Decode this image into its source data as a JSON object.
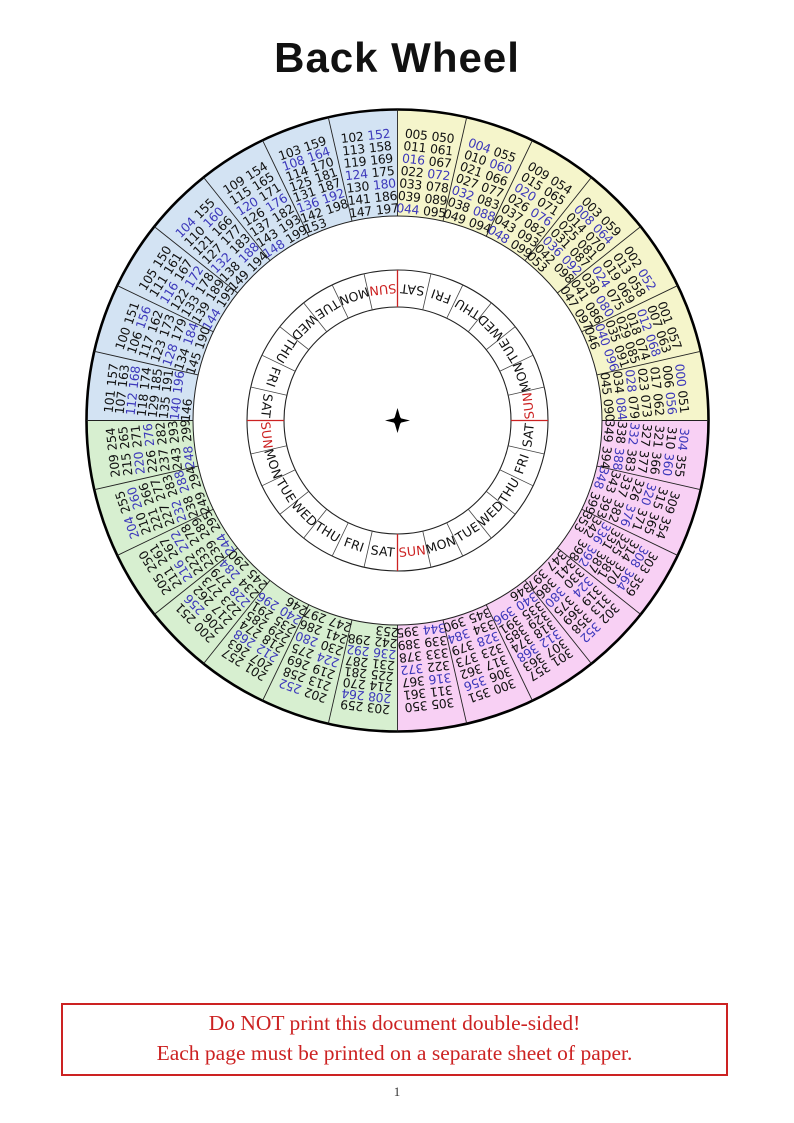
{
  "page": {
    "title": "Back Wheel",
    "page_number": "1"
  },
  "warning_box": {
    "line1": "Do NOT print this document double-sided!",
    "line2": "Each page must be printed on a separate sheet of paper."
  },
  "colors": {
    "century_000_fill": "#f5f5cb",
    "century_100_fill": "#d3e3f3",
    "century_200_fill": "#d7efd0",
    "century_300_fill": "#f8d0f4",
    "leap_year_text": "#3c38bb",
    "year_text": "#111111",
    "sunday_text": "#cc2222",
    "axis_mark": "#cc2222",
    "line": "#222222",
    "warning_red": "#cc2222"
  },
  "wheel": {
    "day_ring": {
      "days_clockwise_from_top": [
        "SAT",
        "FRI",
        "THU",
        "WED",
        "TUE",
        "MON",
        "SUN",
        "SAT",
        "FRI",
        "THU",
        "WED",
        "TUE",
        "MON",
        "SUN",
        "SAT",
        "FRI",
        "THU",
        "WED",
        "TUE",
        "MON",
        "SUN",
        "SAT",
        "FRI",
        "THU",
        "WED",
        "TUE",
        "MON",
        "SUN"
      ]
    },
    "black_centuries": [
      "100",
      "200",
      "300"
    ],
    "sectors_clockwise_from_top": [
      {
        "century": "000-099",
        "fill": "century_000_fill",
        "years": [
          "005",
          "011",
          "016",
          "022",
          "033",
          "039",
          "044",
          "050",
          "061",
          "067",
          "072",
          "078",
          "089",
          "095"
        ]
      },
      {
        "century": "000-099",
        "fill": "century_000_fill",
        "years": [
          "004",
          "010",
          "021",
          "027",
          "032",
          "038",
          "049",
          "055",
          "060",
          "066",
          "077",
          "083",
          "088",
          "094"
        ]
      },
      {
        "century": "000-099",
        "fill": "century_000_fill",
        "years": [
          "009",
          "015",
          "020",
          "026",
          "037",
          "043",
          "048",
          "054",
          "065",
          "071",
          "076",
          "082",
          "093",
          "099"
        ]
      },
      {
        "century": "000-099",
        "fill": "century_000_fill",
        "years": [
          "003",
          "008",
          "014",
          "025",
          "031",
          "036",
          "042",
          "053",
          "059",
          "064",
          "070",
          "081",
          "087",
          "092",
          "098"
        ]
      },
      {
        "century": "000-099",
        "fill": "century_000_fill",
        "years": [
          "002",
          "013",
          "019",
          "024",
          "030",
          "041",
          "047",
          "052",
          "058",
          "069",
          "075",
          "080",
          "086",
          "097"
        ]
      },
      {
        "century": "000-099",
        "fill": "century_000_fill",
        "years": [
          "001",
          "007",
          "012",
          "018",
          "029",
          "035",
          "040",
          "046",
          "057",
          "063",
          "068",
          "074",
          "085",
          "091",
          "096"
        ]
      },
      {
        "century": "000-099",
        "fill": "century_000_fill",
        "years": [
          "000",
          "006",
          "017",
          "023",
          "028",
          "034",
          "045",
          "051",
          "056",
          "062",
          "073",
          "079",
          "084",
          "090"
        ]
      },
      {
        "century": "300-399",
        "fill": "century_300_fill",
        "years": [
          "304",
          "310",
          "321",
          "327",
          "332",
          "338",
          "349",
          "355",
          "360",
          "366",
          "377",
          "383",
          "388",
          "394"
        ]
      },
      {
        "century": "300-399",
        "fill": "century_300_fill",
        "years": [
          "309",
          "315",
          "320",
          "326",
          "337",
          "343",
          "348",
          "354",
          "365",
          "371",
          "376",
          "382",
          "393",
          "399"
        ]
      },
      {
        "century": "300-399",
        "fill": "century_300_fill",
        "years": [
          "303",
          "308",
          "314",
          "325",
          "331",
          "336",
          "342",
          "353",
          "359",
          "364",
          "370",
          "381",
          "387",
          "392",
          "398"
        ]
      },
      {
        "century": "300-399",
        "fill": "century_300_fill",
        "years": [
          "302",
          "313",
          "319",
          "324",
          "330",
          "341",
          "347",
          "352",
          "358",
          "369",
          "375",
          "380",
          "386",
          "397"
        ]
      },
      {
        "century": "300-399",
        "fill": "century_300_fill",
        "years": [
          "301",
          "307",
          "312",
          "318",
          "329",
          "335",
          "340",
          "346",
          "357",
          "363",
          "368",
          "374",
          "385",
          "391",
          "396"
        ]
      },
      {
        "century": "300-399",
        "fill": "century_300_fill",
        "years": [
          "300",
          "306",
          "317",
          "323",
          "328",
          "334",
          "345",
          "351",
          "356",
          "362",
          "373",
          "379",
          "384",
          "390"
        ]
      },
      {
        "century": "300-399",
        "fill": "century_300_fill",
        "years": [
          "305",
          "311",
          "316",
          "322",
          "333",
          "339",
          "344",
          "350",
          "361",
          "367",
          "372",
          "378",
          "389",
          "395"
        ]
      },
      {
        "century": "200-299",
        "fill": "century_200_fill",
        "years": [
          "203",
          "208",
          "214",
          "225",
          "231",
          "236",
          "242",
          "253",
          "259",
          "264",
          "270",
          "281",
          "287",
          "292",
          "298"
        ]
      },
      {
        "century": "200-299",
        "fill": "century_200_fill",
        "years": [
          "202",
          "213",
          "219",
          "224",
          "230",
          "241",
          "247",
          "252",
          "258",
          "269",
          "275",
          "280",
          "286",
          "297"
        ]
      },
      {
        "century": "200-299",
        "fill": "century_200_fill",
        "years": [
          "201",
          "207",
          "212",
          "218",
          "229",
          "235",
          "240",
          "246",
          "257",
          "263",
          "268",
          "274",
          "285",
          "291",
          "296"
        ]
      },
      {
        "century": "200-299",
        "fill": "century_200_fill",
        "years": [
          "200",
          "206",
          "217",
          "223",
          "228",
          "234",
          "245",
          "251",
          "256",
          "262",
          "273",
          "279",
          "284",
          "290"
        ]
      },
      {
        "century": "200-299",
        "fill": "century_200_fill",
        "years": [
          "205",
          "211",
          "216",
          "222",
          "233",
          "239",
          "244",
          "250",
          "261",
          "267",
          "272",
          "278",
          "289",
          "295"
        ]
      },
      {
        "century": "200-299",
        "fill": "century_200_fill",
        "years": [
          "204",
          "210",
          "221",
          "227",
          "232",
          "238",
          "249",
          "255",
          "260",
          "266",
          "277",
          "283",
          "288",
          "294"
        ]
      },
      {
        "century": "200-299",
        "fill": "century_200_fill",
        "years": [
          "209",
          "215",
          "220",
          "226",
          "237",
          "243",
          "248",
          "254",
          "265",
          "271",
          "276",
          "282",
          "293",
          "299"
        ]
      },
      {
        "century": "100-199",
        "fill": "century_100_fill",
        "years": [
          "101",
          "107",
          "112",
          "118",
          "129",
          "135",
          "140",
          "146",
          "157",
          "163",
          "168",
          "174",
          "185",
          "191",
          "196"
        ]
      },
      {
        "century": "100-199",
        "fill": "century_100_fill",
        "years": [
          "100",
          "106",
          "117",
          "123",
          "128",
          "134",
          "145",
          "151",
          "156",
          "162",
          "173",
          "179",
          "184",
          "190"
        ]
      },
      {
        "century": "100-199",
        "fill": "century_100_fill",
        "years": [
          "105",
          "111",
          "116",
          "122",
          "133",
          "139",
          "144",
          "150",
          "161",
          "167",
          "172",
          "178",
          "189",
          "195"
        ]
      },
      {
        "century": "100-199",
        "fill": "century_100_fill",
        "years": [
          "104",
          "110",
          "121",
          "127",
          "132",
          "138",
          "149",
          "155",
          "160",
          "166",
          "177",
          "183",
          "188",
          "194"
        ]
      },
      {
        "century": "100-199",
        "fill": "century_100_fill",
        "years": [
          "109",
          "115",
          "120",
          "126",
          "137",
          "143",
          "148",
          "154",
          "165",
          "171",
          "176",
          "182",
          "193",
          "199"
        ]
      },
      {
        "century": "100-199",
        "fill": "century_100_fill",
        "years": [
          "103",
          "108",
          "114",
          "125",
          "131",
          "136",
          "142",
          "153",
          "159",
          "164",
          "170",
          "181",
          "187",
          "192",
          "198"
        ]
      },
      {
        "century": "100-199",
        "fill": "century_100_fill",
        "years": [
          "102",
          "113",
          "119",
          "124",
          "130",
          "141",
          "147",
          "152",
          "158",
          "169",
          "175",
          "180",
          "186",
          "197"
        ]
      }
    ]
  }
}
